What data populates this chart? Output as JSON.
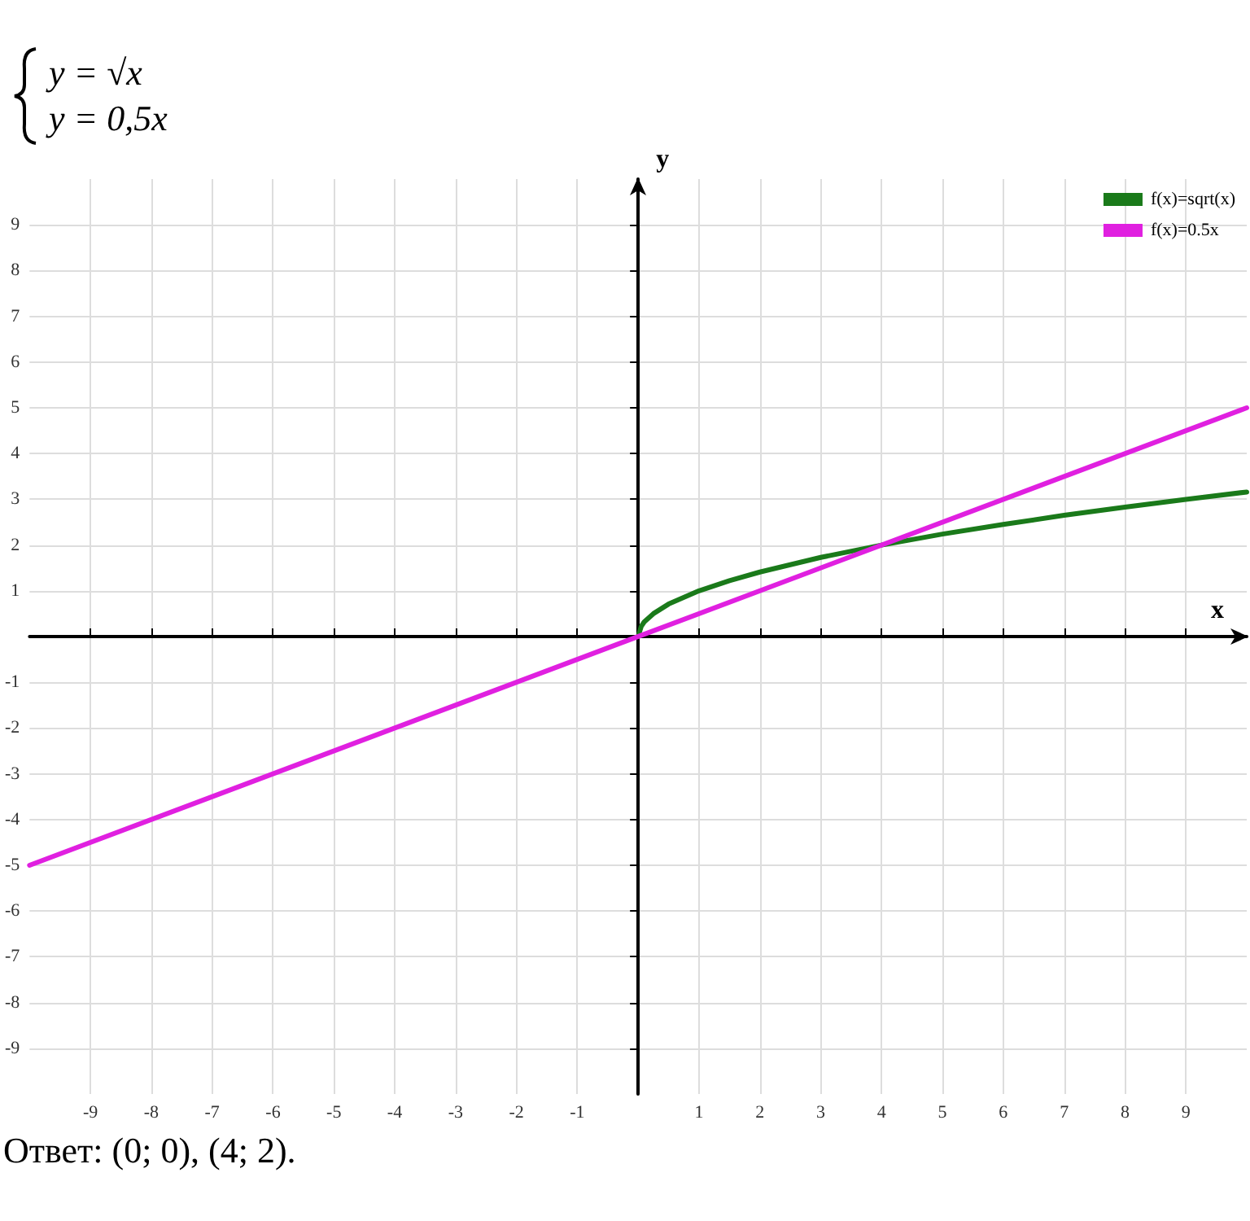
{
  "chart_data": {
    "type": "line",
    "title": "y = √x",
    "subtitle": "y = 0,5x",
    "xlabel": "x",
    "ylabel": "y",
    "series": [
      {
        "name": "f(x)=sqrt(x)",
        "color": "#1a7a1a",
        "x": [
          0,
          0.05,
          0.1,
          0.25,
          0.5,
          1,
          1.5,
          2,
          3,
          4,
          5,
          6,
          7,
          8,
          9,
          10
        ],
        "values": [
          0,
          0.22,
          0.32,
          0.5,
          0.71,
          1,
          1.22,
          1.41,
          1.73,
          2,
          2.24,
          2.45,
          2.65,
          2.83,
          3,
          3.16
        ]
      },
      {
        "name": "f(x)=0.5x",
        "color": "#e020e0",
        "x": [
          -10,
          10
        ],
        "values": [
          -5,
          5
        ]
      }
    ],
    "xlim": [
      -10,
      10
    ],
    "ylim": [
      -10,
      10
    ],
    "xticks": [
      -9,
      -8,
      -7,
      -6,
      -5,
      -4,
      -3,
      -2,
      -1,
      1,
      2,
      3,
      4,
      5,
      6,
      7,
      8,
      9
    ],
    "yticks": [
      -9,
      -8,
      -7,
      -6,
      -5,
      -4,
      -3,
      -2,
      -1,
      1,
      2,
      3,
      4,
      5,
      6,
      7,
      8,
      9
    ],
    "grid": true,
    "legend": "top right",
    "marker": "none",
    "line_style": "solid",
    "annotations": [
      "Ответ: (0; 0), (4; 2)."
    ]
  }
}
